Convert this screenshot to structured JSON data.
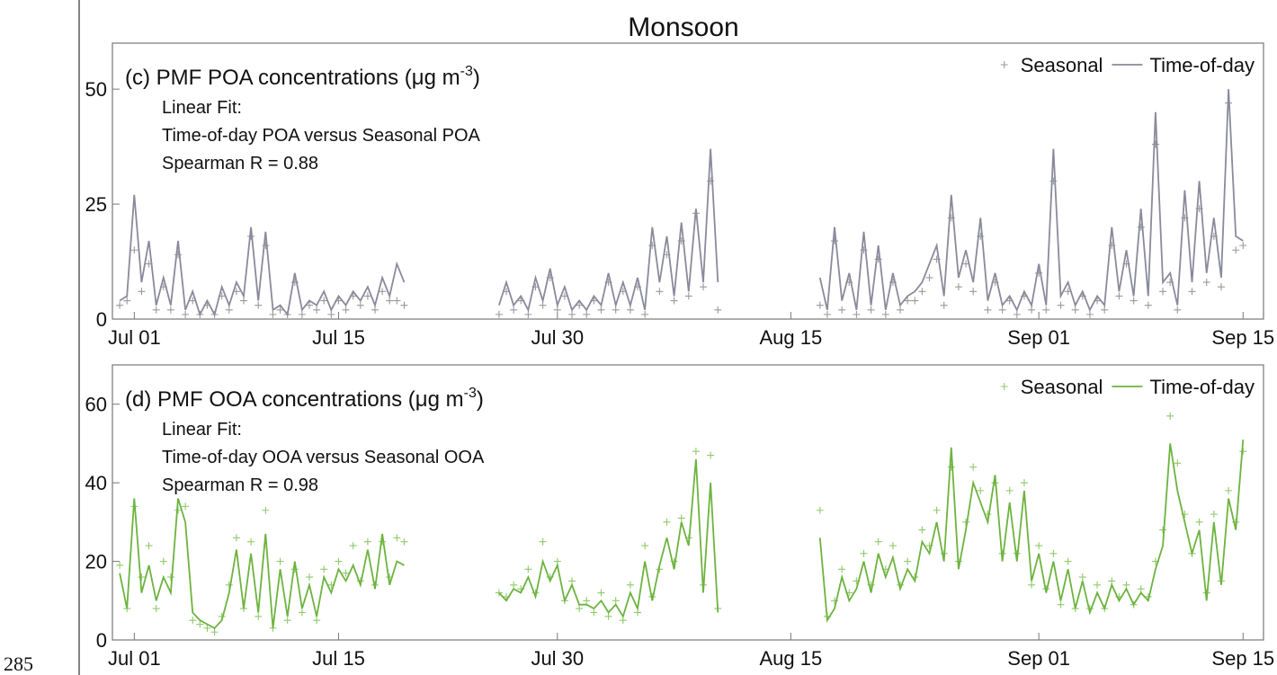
{
  "figure_title": "Monsoon",
  "line_number": "285",
  "chart_data": [
    {
      "type": "line",
      "panel_label": "(c) PMF POA concentrations (μg m",
      "panel_label_sup": "-3",
      "panel_label_end": ")",
      "annotations": [
        "Linear Fit:",
        "Time-of-day POA versus Seasonal POA",
        "Spearman R = 0.88"
      ],
      "legend": "upper right",
      "x": [
        -1,
        -0.5,
        0,
        0.5,
        1,
        1.5,
        2,
        2.5,
        3,
        3.5,
        4,
        4.5,
        5,
        5.5,
        6,
        6.5,
        7,
        7.5,
        8,
        8.5,
        9,
        9.5,
        10,
        10.5,
        11,
        11.5,
        12,
        12.5,
        13,
        13.5,
        14,
        14.5,
        15,
        15.5,
        16,
        16.5,
        17,
        17.5,
        18,
        18.5,
        21.5,
        25,
        25.5,
        26,
        26.5,
        27,
        27.5,
        28,
        28.5,
        29,
        29.5,
        30,
        30.5,
        31,
        31.5,
        32,
        32.5,
        33,
        33.5,
        34,
        34.5,
        35,
        35.5,
        36,
        36.5,
        37,
        37.5,
        38,
        38.5,
        39,
        39.5,
        40,
        44,
        47,
        47.5,
        48,
        48.5,
        49,
        49.5,
        50,
        50.5,
        51,
        51.5,
        52,
        52.5,
        53,
        53.5,
        54,
        54.5,
        55,
        55.5,
        56,
        56.5,
        57,
        57.5,
        58,
        58.5,
        59,
        59.5,
        60,
        60.5,
        61,
        61.5,
        62,
        62.5,
        63,
        63.5,
        64,
        64.5,
        65,
        65.5,
        66,
        66.5,
        67,
        67.5,
        68,
        68.5,
        69,
        69.5,
        70,
        70.5,
        71,
        71.5,
        72,
        72.5,
        73,
        73.5,
        74,
        74.5,
        75,
        75.5,
        76
      ],
      "series": [
        {
          "name": "Seasonal",
          "style": "markers",
          "color": "#9a9a9a",
          "values": [
            3,
            4,
            15,
            6,
            12,
            2,
            7,
            2,
            14,
            1,
            4,
            1,
            3,
            1,
            5,
            2,
            6,
            4,
            18,
            3,
            16,
            1,
            2,
            1,
            8,
            1,
            3,
            2,
            4,
            1,
            4,
            2,
            5,
            3,
            5,
            2,
            6,
            4,
            4,
            3,
            null,
            1,
            6,
            2,
            4,
            1,
            7,
            3,
            9,
            2,
            5,
            1,
            3,
            1,
            4,
            2,
            8,
            2,
            6,
            2,
            7,
            1,
            16,
            6,
            14,
            4,
            17,
            5,
            23,
            7,
            30,
            2,
            null,
            3,
            1,
            17,
            2,
            8,
            1,
            15,
            2,
            13,
            1,
            8,
            2,
            4,
            4,
            6,
            9,
            13,
            3,
            22,
            7,
            12,
            6,
            18,
            2,
            8,
            2,
            4,
            1,
            5,
            2,
            10,
            2,
            30,
            3,
            6,
            2,
            5,
            1,
            4,
            2,
            16,
            5,
            12,
            4,
            20,
            3,
            38,
            6,
            8,
            2,
            22,
            6,
            24,
            8,
            18,
            7,
            47,
            15,
            16
          ]
        },
        {
          "name": "Time-of-day",
          "style": "line",
          "color": "#8a8a9c",
          "values": [
            4,
            5,
            27,
            8,
            17,
            3,
            9,
            3,
            17,
            2,
            6,
            1,
            4,
            1,
            7,
            3,
            8,
            5,
            20,
            4,
            19,
            2,
            3,
            1,
            10,
            2,
            4,
            3,
            6,
            2,
            5,
            3,
            6,
            4,
            7,
            3,
            9,
            5,
            12,
            8,
            null,
            3,
            8,
            3,
            5,
            2,
            9,
            4,
            11,
            3,
            7,
            2,
            4,
            2,
            5,
            3,
            10,
            3,
            8,
            3,
            9,
            2,
            20,
            8,
            18,
            5,
            21,
            6,
            24,
            8,
            37,
            8,
            null,
            9,
            2,
            20,
            4,
            10,
            2,
            19,
            3,
            16,
            2,
            10,
            3,
            5,
            6,
            8,
            12,
            16,
            5,
            27,
            9,
            15,
            8,
            22,
            4,
            10,
            3,
            5,
            2,
            6,
            3,
            12,
            3,
            37,
            5,
            8,
            3,
            6,
            2,
            5,
            3,
            20,
            6,
            15,
            5,
            24,
            5,
            45,
            8,
            10,
            3,
            28,
            8,
            30,
            10,
            22,
            9,
            50,
            18,
            17
          ]
        }
      ],
      "xlim": [
        -1.5,
        77.4
      ],
      "ylim": [
        0,
        60
      ],
      "yticks": [
        0,
        25,
        50
      ],
      "xticks": [
        {
          "value": 0,
          "label": "Jul 01"
        },
        {
          "value": 14,
          "label": "Jul 15"
        },
        {
          "value": 29,
          "label": "Jul 30"
        },
        {
          "value": 45,
          "label": "Aug 15"
        },
        {
          "value": 62,
          "label": "Sep 01"
        },
        {
          "value": 76,
          "label": "Sep 15"
        }
      ]
    },
    {
      "type": "line",
      "panel_label": "(d) PMF OOA concentrations (μg m",
      "panel_label_sup": "-3",
      "panel_label_end": ")",
      "annotations": [
        "Linear Fit:",
        "Time-of-day OOA versus Seasonal OOA",
        "Spearman R = 0.98"
      ],
      "legend": "upper right",
      "x": [
        -1,
        -0.5,
        0,
        0.5,
        1,
        1.5,
        2,
        2.5,
        3,
        3.5,
        4,
        4.5,
        5,
        5.5,
        6,
        6.5,
        7,
        7.5,
        8,
        8.5,
        9,
        9.5,
        10,
        10.5,
        11,
        11.5,
        12,
        12.5,
        13,
        13.5,
        14,
        14.5,
        15,
        15.5,
        16,
        16.5,
        17,
        17.5,
        18,
        18.5,
        21.5,
        25,
        25.5,
        26,
        26.5,
        27,
        27.5,
        28,
        28.5,
        29,
        29.5,
        30,
        30.5,
        31,
        31.5,
        32,
        32.5,
        33,
        33.5,
        34,
        34.5,
        35,
        35.5,
        36,
        36.5,
        37,
        37.5,
        38,
        38.5,
        39,
        39.5,
        40,
        44,
        47,
        47.5,
        48,
        48.5,
        49,
        49.5,
        50,
        50.5,
        51,
        51.5,
        52,
        52.5,
        53,
        53.5,
        54,
        54.5,
        55,
        55.5,
        56,
        56.5,
        57,
        57.5,
        58,
        58.5,
        59,
        59.5,
        60,
        60.5,
        61,
        61.5,
        62,
        62.5,
        63,
        63.5,
        64,
        64.5,
        65,
        65.5,
        66,
        66.5,
        67,
        67.5,
        68,
        68.5,
        69,
        69.5,
        70,
        70.5,
        71,
        71.5,
        72,
        72.5,
        73,
        73.5,
        74,
        74.5,
        75,
        75.5,
        76
      ],
      "series": [
        {
          "name": "Seasonal",
          "style": "markers",
          "color": "#8fca6a",
          "values": [
            19,
            8,
            34,
            16,
            24,
            8,
            20,
            16,
            33,
            34,
            5,
            4,
            3,
            2,
            6,
            14,
            26,
            8,
            25,
            6,
            33,
            3,
            20,
            5,
            18,
            7,
            16,
            5,
            18,
            14,
            20,
            17,
            24,
            15,
            25,
            14,
            25,
            16,
            26,
            25,
            null,
            12,
            11,
            14,
            13,
            18,
            12,
            25,
            16,
            20,
            10,
            15,
            8,
            10,
            7,
            12,
            6,
            10,
            5,
            14,
            7,
            24,
            11,
            18,
            30,
            20,
            31,
            26,
            48,
            14,
            47,
            8,
            null,
            33,
            6,
            10,
            18,
            12,
            15,
            22,
            14,
            25,
            18,
            24,
            14,
            20,
            16,
            28,
            24,
            33,
            22,
            44,
            20,
            30,
            44,
            38,
            32,
            40,
            22,
            38,
            22,
            40,
            14,
            24,
            13,
            22,
            9,
            20,
            8,
            16,
            8,
            14,
            8,
            15,
            11,
            14,
            9,
            13,
            11,
            20,
            28,
            57,
            45,
            32,
            22,
            30,
            12,
            32,
            15,
            38,
            30,
            48
          ]
        },
        {
          "name": "Time-of-day",
          "style": "line",
          "color": "#6db33f",
          "values": [
            17,
            8,
            36,
            12,
            19,
            10,
            16,
            12,
            36,
            30,
            7,
            5,
            4,
            3,
            5,
            12,
            23,
            8,
            22,
            7,
            27,
            3,
            18,
            6,
            20,
            8,
            14,
            6,
            16,
            12,
            18,
            15,
            19,
            14,
            23,
            13,
            27,
            14,
            20,
            19,
            null,
            12,
            10,
            13,
            12,
            16,
            11,
            20,
            15,
            19,
            10,
            14,
            9,
            9,
            8,
            10,
            7,
            9,
            6,
            12,
            8,
            20,
            10,
            19,
            26,
            18,
            30,
            24,
            46,
            12,
            40,
            7,
            null,
            26,
            5,
            8,
            16,
            10,
            13,
            20,
            12,
            22,
            16,
            21,
            13,
            18,
            15,
            25,
            22,
            30,
            20,
            49,
            18,
            28,
            40,
            35,
            30,
            42,
            20,
            35,
            20,
            38,
            15,
            22,
            12,
            20,
            10,
            18,
            8,
            15,
            7,
            12,
            8,
            14,
            10,
            13,
            9,
            12,
            10,
            18,
            24,
            50,
            38,
            30,
            22,
            28,
            10,
            30,
            14,
            36,
            28,
            51
          ]
        }
      ],
      "xlim": [
        -1.5,
        77.4
      ],
      "ylim": [
        0,
        70
      ],
      "yticks": [
        0,
        20,
        40,
        60
      ],
      "xticks": [
        {
          "value": 0,
          "label": "Jul 01"
        },
        {
          "value": 14,
          "label": "Jul 15"
        },
        {
          "value": 29,
          "label": "Jul 30"
        },
        {
          "value": 45,
          "label": "Aug 15"
        },
        {
          "value": 62,
          "label": "Sep 01"
        },
        {
          "value": 76,
          "label": "Sep 15"
        }
      ]
    }
  ]
}
